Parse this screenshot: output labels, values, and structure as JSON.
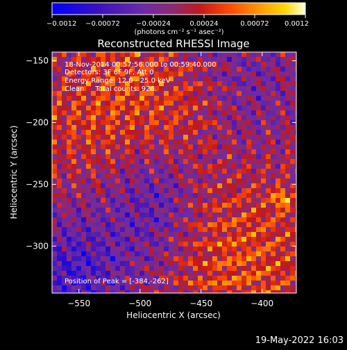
{
  "chart_data": {
    "type": "heatmap",
    "title": "Reconstructed RHESSI Image",
    "xlabel": "Heliocentric X (arcsec)",
    "ylabel": "Heliocentric Y (arcsec)",
    "xlim": [
      -572,
      -372
    ],
    "ylim": [
      -338,
      -143
    ],
    "x_ticks": [
      -550,
      -500,
      -450,
      -400
    ],
    "y_ticks": [
      -150,
      -200,
      -250,
      -300
    ],
    "x_tick_labels": [
      "−550",
      "−500",
      "−450",
      "−400"
    ],
    "y_tick_labels": [
      "−150",
      "−200",
      "−250",
      "−300"
    ],
    "colorbar": {
      "range": [
        -0.0012,
        0.0012
      ],
      "ticks": [
        -0.0012,
        -0.00072,
        -0.00024,
        0.00024,
        0.00072,
        0.0012
      ],
      "tick_labels": [
        "−0.0012",
        "−0.00072",
        "−0.00024",
        "0.00024",
        "0.00072",
        "0.0012"
      ],
      "unit_label": "(photons cm⁻² s⁻¹ asec⁻²)"
    },
    "annotations": [
      "18-Nov-2014 00:57:56.000 to 00:59:40.000",
      "Detectors: 3F 6F 9F, Att 0",
      "Energy Range: 12.0 - 25.0 keV",
      "Clean     Total counts: 926."
    ],
    "peak_label": "Position of Peak = [-384,-262]",
    "peak": [
      -384,
      -262
    ],
    "footer": "19-May-2022 16:03",
    "colors": {
      "background": "#000000",
      "text": "#ffffff",
      "colormap": [
        "#0000ff",
        "#3a10c0",
        "#6a2aa8",
        "#8a2a78",
        "#c0181e",
        "#ff4a00",
        "#ff9a00",
        "#ffd800",
        "#ffffc0"
      ]
    }
  }
}
